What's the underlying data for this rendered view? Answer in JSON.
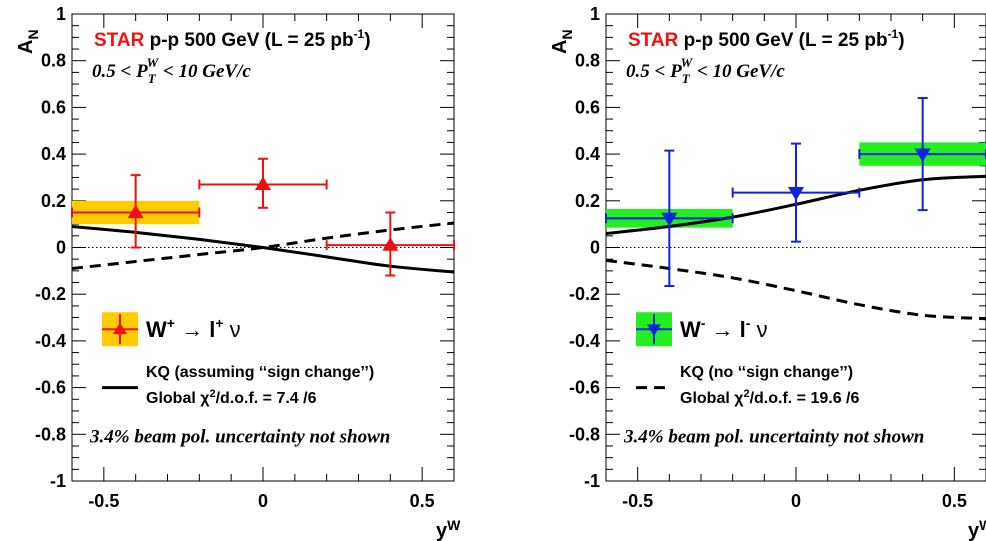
{
  "chart_data": [
    {
      "type": "scatter",
      "color": "#ee1111",
      "box_color": "#ffcc00",
      "marker": "triangle-up",
      "xlabel": "y",
      "xlabel_sup": "W",
      "ylabel": "A",
      "ylabel_sub": "N",
      "xlim": [
        -0.6,
        0.6
      ],
      "ylim": [
        -1,
        1
      ],
      "xticks": [
        "-0.5",
        "0",
        "0.5"
      ],
      "yticks": [
        "-1",
        "-0.8",
        "-0.6",
        "-0.4",
        "-0.2",
        "0",
        "0.2",
        "0.4",
        "0.6",
        "0.8",
        "1"
      ],
      "experiment": "STAR",
      "header": "p-p 500 GeV (L = 25 pb",
      "header_sup": "-1",
      "header_close": ")",
      "kin_left": "0.5 < P",
      "kin_sub": "T",
      "kin_sup": "W",
      "kin_right": "< 10 GeV/c",
      "points": [
        {
          "x": -0.4,
          "y": 0.15,
          "xerr": 0.2,
          "yerr_up": 0.16,
          "yerr_down": 0.15,
          "sys": 0.05
        },
        {
          "x": 0.0,
          "y": 0.27,
          "xerr": 0.2,
          "yerr_up": 0.11,
          "yerr_down": 0.1
        },
        {
          "x": 0.4,
          "y": 0.01,
          "xerr": 0.2,
          "yerr_up": 0.14,
          "yerr_down": 0.13
        }
      ],
      "theory_solid": {
        "x": [
          -0.6,
          -0.4,
          -0.2,
          0.0,
          0.2,
          0.4,
          0.6
        ],
        "y": [
          0.09,
          0.065,
          0.035,
          0.0,
          -0.04,
          -0.08,
          -0.105
        ]
      },
      "theory_dashed": {
        "x": [
          -0.6,
          -0.4,
          -0.2,
          0.0,
          0.2,
          0.4,
          0.6
        ],
        "y": [
          -0.09,
          -0.06,
          -0.03,
          0.0,
          0.04,
          0.075,
          0.105
        ]
      },
      "legend_main": "W",
      "legend_main_sup": "+",
      "legend_arrow": "→",
      "legend_lepton": "l",
      "legend_lepton_sup": "+",
      "legend_nu": "ν",
      "legend_kq": "KQ (assuming ‘‘sign change’’)",
      "legend_chi_left": "Global χ",
      "legend_chi_sup": "2",
      "legend_chi_right": "/d.o.f. = 7.4  /6",
      "note": "3.4% beam pol. uncertainty not shown"
    },
    {
      "type": "scatter",
      "color": "#1122dd",
      "box_color": "#22ee22",
      "marker": "triangle-down",
      "xlabel": "y",
      "xlabel_sup": "W",
      "ylabel": "A",
      "ylabel_sub": "N",
      "xlim": [
        -0.6,
        0.6
      ],
      "ylim": [
        -1,
        1
      ],
      "xticks": [
        "-0.5",
        "0",
        "0.5"
      ],
      "yticks": [
        "-1",
        "-0.8",
        "-0.6",
        "-0.4",
        "-0.2",
        "0",
        "0.2",
        "0.4",
        "0.6",
        "0.8",
        "1"
      ],
      "experiment": "STAR",
      "header": "p-p 500 GeV (L = 25 pb",
      "header_sup": "-1",
      "header_close": ")",
      "kin_left": "0.5 < P",
      "kin_sub": "T",
      "kin_sup": "W",
      "kin_right": "< 10 GeV/c",
      "points": [
        {
          "x": -0.4,
          "y": 0.125,
          "xerr": 0.2,
          "yerr_up": 0.29,
          "yerr_down": 0.29,
          "sys": 0.04
        },
        {
          "x": 0.0,
          "y": 0.235,
          "xerr": 0.2,
          "yerr_up": 0.21,
          "yerr_down": 0.21
        },
        {
          "x": 0.4,
          "y": 0.4,
          "xerr": 0.2,
          "yerr_up": 0.24,
          "yerr_down": 0.24,
          "sys": 0.05
        }
      ],
      "theory_solid": {
        "x": [
          -0.6,
          -0.4,
          -0.2,
          0.0,
          0.2,
          0.4,
          0.6
        ],
        "y": [
          0.06,
          0.09,
          0.13,
          0.185,
          0.245,
          0.29,
          0.305
        ]
      },
      "theory_dashed": {
        "x": [
          -0.6,
          -0.4,
          -0.2,
          0.0,
          0.2,
          0.4,
          0.6
        ],
        "y": [
          -0.055,
          -0.09,
          -0.13,
          -0.185,
          -0.245,
          -0.29,
          -0.305
        ]
      },
      "legend_main": "W",
      "legend_main_sup": "-",
      "legend_arrow": "→",
      "legend_lepton": "l",
      "legend_lepton_sup": "-",
      "legend_nu": "ν",
      "legend_kq": "KQ (no ‘‘sign change’’)",
      "legend_chi_left": "Global χ",
      "legend_chi_sup": "2",
      "legend_chi_right": "/d.o.f. = 19.6  /6",
      "note": "3.4% beam pol. uncertainty not shown"
    }
  ]
}
